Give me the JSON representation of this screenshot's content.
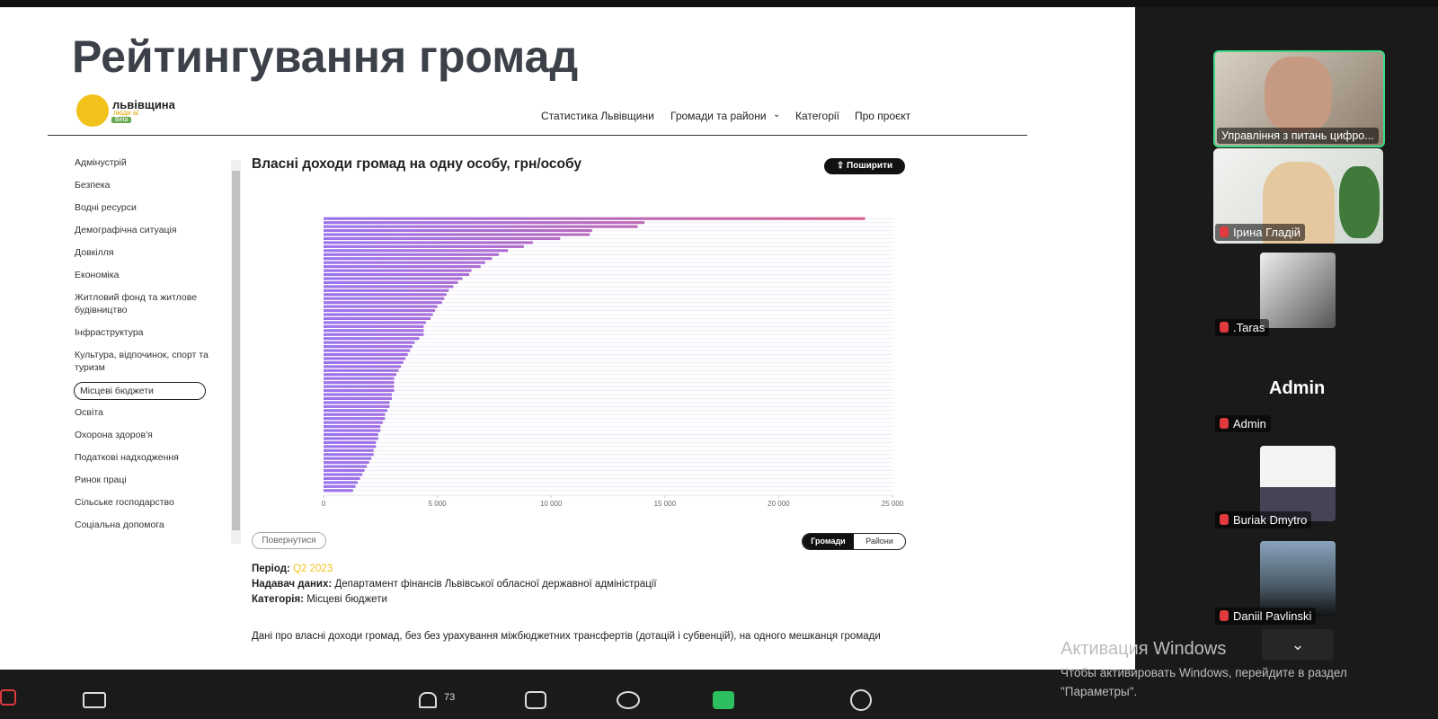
{
  "slide": {
    "title": "Рейтингування громад",
    "logo": {
      "name": "львівщина",
      "tagline": "люди ai",
      "badge": "Beta"
    },
    "nav": [
      "Статистика Львівщини",
      "Громади та райони",
      "Категорії",
      "Про проєкт"
    ],
    "sidebar": [
      "Адмінустрій",
      "Безпека",
      "Водні ресурси",
      "Демографічна ситуація",
      "Довкілля",
      "Економіка",
      "Житловий фонд та житлове будівництво",
      "Інфраструктура",
      "Культура, відпочинок, спорт та туризм",
      "Місцеві бюджети",
      "Освіта",
      "Охорона здоров'я",
      "Податкові надходження",
      "Ринок праці",
      "Сільське господарство",
      "Соціальна допомога"
    ],
    "sidebar_active": 9,
    "share_button": "Поширити",
    "back_button": "Повернутися",
    "toggle": [
      "Громади",
      "Райони"
    ],
    "toggle_active": 0,
    "meta": [
      {
        "key": "Період:",
        "value": "Q2 2023"
      },
      {
        "key": "Надавач даних:",
        "value": "Департамент фінансів Львівської обласної державної адміністрації"
      },
      {
        "key": "Категорія:",
        "value": "Місцеві бюджети"
      }
    ],
    "description": "Дані про власні доходи громад, без без урахування міжбюджетних трансфертів (дотацій і субвенцій), на одного мешканця громади"
  },
  "chart_data": {
    "type": "bar",
    "orientation": "horizontal",
    "title": "Власні доходи громад на одну особу, грн/особу",
    "categories": [
      null,
      null,
      null,
      null,
      null,
      null,
      null,
      null,
      null,
      null,
      null,
      null,
      null,
      null,
      null,
      null,
      null,
      null,
      null,
      null,
      null,
      null,
      null,
      null,
      null,
      null,
      null,
      null,
      null,
      null,
      null,
      null,
      null,
      null,
      null,
      null,
      null,
      null,
      null,
      null,
      null,
      null,
      null,
      null,
      null,
      null,
      null,
      null,
      null,
      null,
      null,
      null,
      null,
      null,
      null,
      null,
      null,
      null,
      null,
      null,
      null,
      null,
      null,
      null,
      null,
      null,
      null,
      null,
      null
    ],
    "values": [
      23800,
      14100,
      13800,
      11800,
      11700,
      10400,
      9200,
      8800,
      8100,
      7700,
      7400,
      7100,
      6900,
      6500,
      6400,
      6100,
      5900,
      5700,
      5500,
      5400,
      5300,
      5200,
      5000,
      4900,
      4800,
      4700,
      4500,
      4400,
      4400,
      4400,
      4200,
      4000,
      3900,
      3800,
      3700,
      3600,
      3500,
      3400,
      3300,
      3200,
      3100,
      3100,
      3100,
      3100,
      3000,
      3000,
      2900,
      2900,
      2800,
      2700,
      2700,
      2600,
      2500,
      2500,
      2400,
      2400,
      2300,
      2300,
      2200,
      2200,
      2100,
      2000,
      1900,
      1800,
      1700,
      1600,
      1500,
      1400,
      1300
    ],
    "colors": [
      "#9a72ee",
      "#d9628a"
    ],
    "xlim": [
      0,
      25000
    ],
    "xticks": [
      0,
      {
        "value": 5000,
        "label": "5 000"
      },
      {
        "value": 10000,
        "label": "10 000"
      },
      {
        "value": 15000,
        "label": "15 000"
      },
      {
        "value": 20000,
        "label": "20 000"
      },
      {
        "value": 25000,
        "label": "25 000"
      }
    ]
  },
  "participants": [
    {
      "name": "Управління з питань цифро..."
    },
    {
      "name": "Ірина Гладій"
    },
    {
      "name": ".Taras"
    },
    {
      "name": "Admin",
      "display": "Admin"
    },
    {
      "name": "Buriak Dmytro"
    },
    {
      "name": "Daniil Pavlinski"
    }
  ],
  "windows_notice": {
    "title": "Активация Windows",
    "line1": "Чтобы активировать Windows, перейдите в раздел",
    "line2": "\"Параметры\"."
  },
  "toolbar": {
    "participants_count": "73"
  }
}
